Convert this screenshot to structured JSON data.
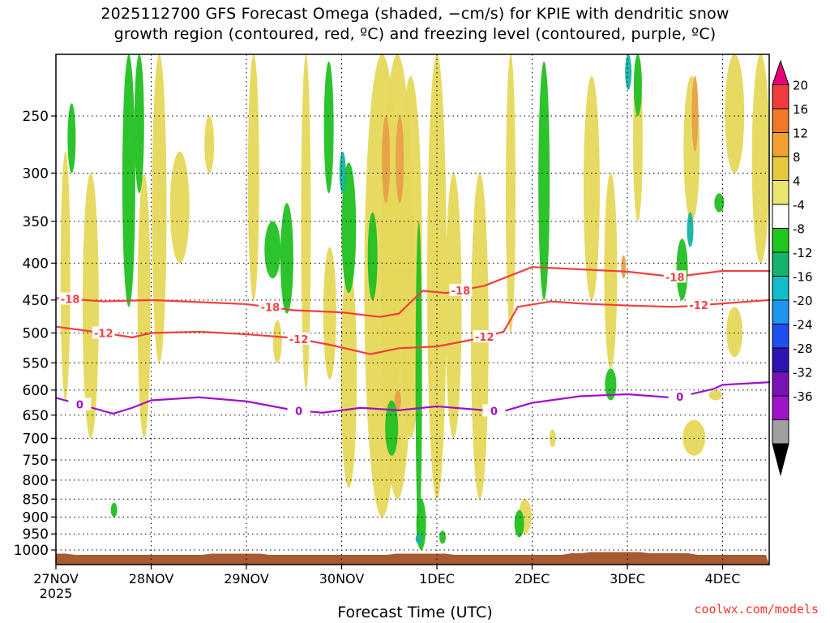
{
  "title_line1": "2025112700 GFS Forecast Omega (shaded, −cm/s) for KPIE with dendritic snow",
  "title_line2": "growth region (contoured, red, ºC) and freezing level (contoured, purple, ºC)",
  "credit": "coolwx.com/models",
  "chart_data": {
    "type": "heatmap",
    "title": "2025112700 GFS Forecast Omega (shaded, −cm/s) for KPIE with dendritic snow growth region (contoured, red, ºC) and freezing level (contoured, purple, ºC)",
    "xlabel": "Forecast Time (UTC)",
    "ylabel": "",
    "x_ticks": [
      "27NOV",
      "28NOV",
      "29NOV",
      "30NOV",
      "1DEC",
      "2DEC",
      "3DEC",
      "4DEC"
    ],
    "x_first_sublabel": "2025",
    "xlim_days": [
      0,
      7.5
    ],
    "y_ticks": [
      250,
      300,
      350,
      400,
      450,
      500,
      550,
      600,
      650,
      700,
      750,
      800,
      850,
      900,
      950,
      1000
    ],
    "ylim_hpa": [
      200,
      1025
    ],
    "y_scale": "log",
    "grid": true,
    "colorbar": {
      "labels": [
        "20",
        "16",
        "12",
        "8",
        "4",
        "-4",
        "-8",
        "-12",
        "-16",
        "-20",
        "-24",
        "-28",
        "-32",
        "-36"
      ],
      "colors": [
        "#e8007a",
        "#f03c3c",
        "#f07828",
        "#f0a030",
        "#e6c83c",
        "#ebe66e",
        "#ffffff",
        "#1ec81e",
        "#14b46e",
        "#0fbec8",
        "#1e96f0",
        "#1e50f0",
        "#2d14b4",
        "#7814b4",
        "#a014c8",
        "#a0a0a0",
        "#000000"
      ]
    },
    "contours": [
      {
        "label": "-18",
        "color": "#f04040",
        "label_positions_day": [
          0.15,
          2.25,
          4.25,
          6.5
        ],
        "points": [
          [
            0,
            447
          ],
          [
            0.5,
            452
          ],
          [
            1.0,
            450
          ],
          [
            1.5,
            453
          ],
          [
            2.0,
            456
          ],
          [
            2.5,
            465
          ],
          [
            3.0,
            468
          ],
          [
            3.4,
            475
          ],
          [
            3.6,
            470
          ],
          [
            3.85,
            437
          ],
          [
            4.1,
            440
          ],
          [
            4.5,
            430
          ],
          [
            5.0,
            405
          ],
          [
            5.5,
            408
          ],
          [
            6.0,
            411
          ],
          [
            6.5,
            418
          ],
          [
            7.0,
            410
          ],
          [
            7.5,
            410
          ]
        ]
      },
      {
        "label": "-12",
        "color": "#f04040",
        "label_positions_day": [
          0.5,
          2.55,
          4.5,
          6.75
        ],
        "points": [
          [
            0,
            490
          ],
          [
            0.5,
            500
          ],
          [
            0.8,
            507
          ],
          [
            1.0,
            500
          ],
          [
            1.5,
            498
          ],
          [
            2.0,
            502
          ],
          [
            2.5,
            508
          ],
          [
            2.9,
            520
          ],
          [
            3.3,
            535
          ],
          [
            3.6,
            525
          ],
          [
            4.0,
            522
          ],
          [
            4.4,
            510
          ],
          [
            4.7,
            498
          ],
          [
            4.85,
            460
          ],
          [
            5.2,
            452
          ],
          [
            5.5,
            455
          ],
          [
            6.0,
            458
          ],
          [
            6.5,
            460
          ],
          [
            7.0,
            455
          ],
          [
            7.5,
            450
          ]
        ]
      },
      {
        "label": "0",
        "color": "#a010c8",
        "label_positions_day": [
          0.25,
          2.55,
          4.6,
          6.55
        ],
        "points": [
          [
            0,
            615
          ],
          [
            0.25,
            628
          ],
          [
            0.6,
            647
          ],
          [
            0.8,
            635
          ],
          [
            1.0,
            620
          ],
          [
            1.5,
            614
          ],
          [
            2.0,
            622
          ],
          [
            2.5,
            640
          ],
          [
            2.8,
            645
          ],
          [
            3.2,
            635
          ],
          [
            3.6,
            640
          ],
          [
            4.0,
            632
          ],
          [
            4.5,
            640
          ],
          [
            4.7,
            642
          ],
          [
            5.0,
            625
          ],
          [
            5.5,
            612
          ],
          [
            6.0,
            608
          ],
          [
            6.5,
            615
          ],
          [
            6.9,
            598
          ],
          [
            7.0,
            590
          ],
          [
            7.5,
            585
          ]
        ]
      }
    ]
  }
}
